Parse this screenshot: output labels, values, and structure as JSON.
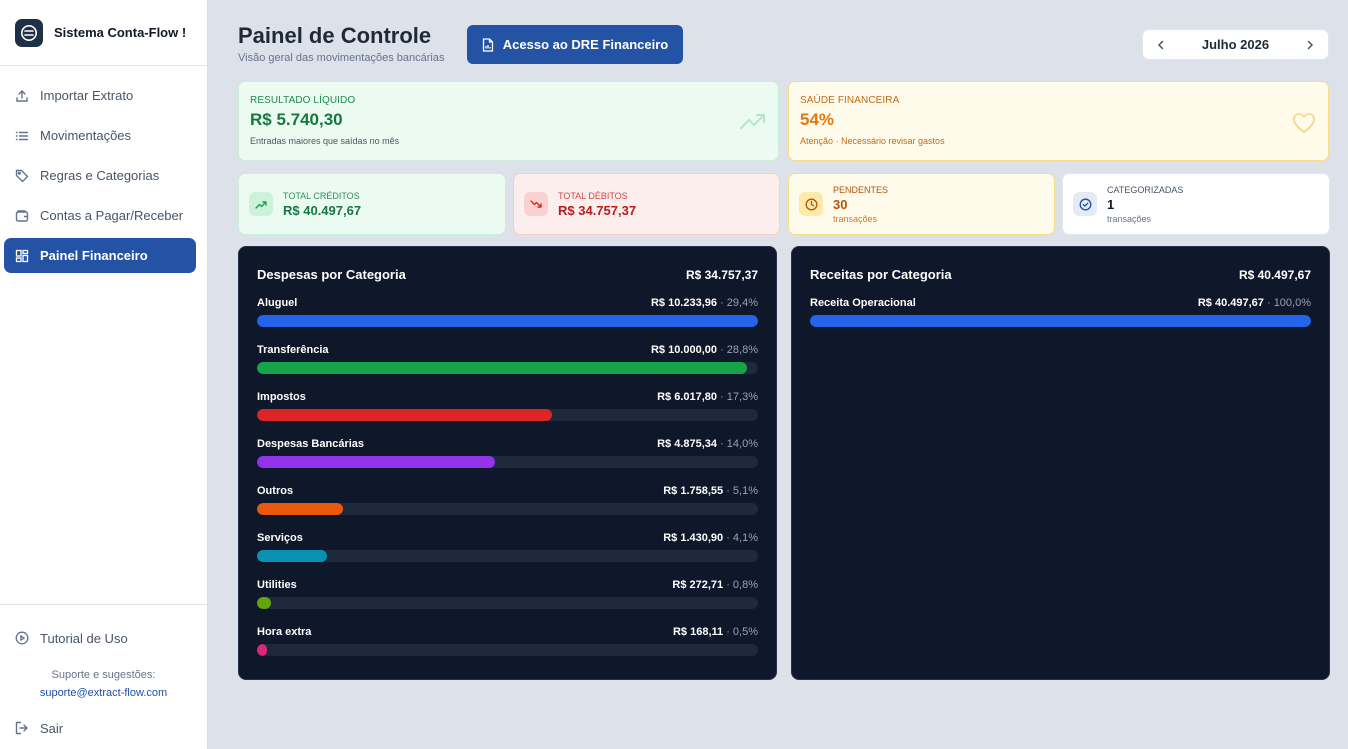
{
  "sidebar": {
    "app_name": "Sistema Conta-Flow !",
    "items": [
      {
        "label": "Importar Extrato",
        "icon": "upload-icon"
      },
      {
        "label": "Movimentações",
        "icon": "list-icon"
      },
      {
        "label": "Regras e Categorias",
        "icon": "tag-icon"
      },
      {
        "label": "Contas a Pagar/Receber",
        "icon": "wallet-icon"
      },
      {
        "label": "Painel Financeiro",
        "icon": "dashboard-icon",
        "active": true
      }
    ],
    "tutorial_label": "Tutorial de Uso",
    "support_label": "Suporte e sugestões:",
    "support_email": "suporte@extract-flow.com",
    "logout_label": "Sair"
  },
  "header": {
    "title": "Painel de Controle",
    "subtitle": "Visão geral das movimentações bancárias",
    "dre_button": "Acesso ao DRE Financeiro",
    "month": "Julho 2026"
  },
  "summary": {
    "result": {
      "label": "RESULTADO LÍQUIDO",
      "value": "R$ 5.740,30",
      "description": "Entradas maiores que saídas no mês"
    },
    "health": {
      "label": "SAÚDE FINANCEIRA",
      "value": "54%",
      "description": "Atenção · Necessário revisar gastos"
    }
  },
  "stats": {
    "credits": {
      "label": "TOTAL CRÉDITOS",
      "value": "R$ 40.497,67"
    },
    "debits": {
      "label": "TOTAL DÉBITOS",
      "value": "R$ 34.757,37"
    },
    "pending": {
      "label": "PENDENTES",
      "value": "30",
      "unit": "transações"
    },
    "categorized": {
      "label": "CATEGORIZADAS",
      "value": "1",
      "unit": "transações"
    }
  },
  "expenses": {
    "title": "Despesas por Categoria",
    "total": "R$ 34.757,37",
    "rows": [
      {
        "name": "Aluguel",
        "amount": "R$ 10.233,96",
        "pct": "· 29,4%",
        "fill": 1.0,
        "color": "#2563eb"
      },
      {
        "name": "Transferência",
        "amount": "R$ 10.000,00",
        "pct": "· 28,8%",
        "fill": 0.978,
        "color": "#16a34a"
      },
      {
        "name": "Impostos",
        "amount": "R$ 6.017,80",
        "pct": "· 17,3%",
        "fill": 0.588,
        "color": "#dc2626"
      },
      {
        "name": "Despesas Bancárias",
        "amount": "R$ 4.875,34",
        "pct": "· 14,0%",
        "fill": 0.476,
        "color": "#9333ea"
      },
      {
        "name": "Outros",
        "amount": "R$ 1.758,55",
        "pct": "· 5,1%",
        "fill": 0.172,
        "color": "#ea580c"
      },
      {
        "name": "Serviços",
        "amount": "R$ 1.430,90",
        "pct": "· 4,1%",
        "fill": 0.14,
        "color": "#0891b2"
      },
      {
        "name": "Utilities",
        "amount": "R$ 272,71",
        "pct": "· 0,8%",
        "fill": 0.027,
        "color": "#65a30d"
      },
      {
        "name": "Hora extra",
        "amount": "R$ 168,11",
        "pct": "· 0,5%",
        "fill": 0.017,
        "color": "#db2777"
      }
    ]
  },
  "revenues": {
    "title": "Receitas por Categoria",
    "total": "R$ 40.497,67",
    "rows": [
      {
        "name": "Receita Operacional",
        "amount": "R$ 40.497,67",
        "pct": "· 100,0%",
        "fill": 1.0,
        "color": "#2563eb"
      }
    ]
  }
}
